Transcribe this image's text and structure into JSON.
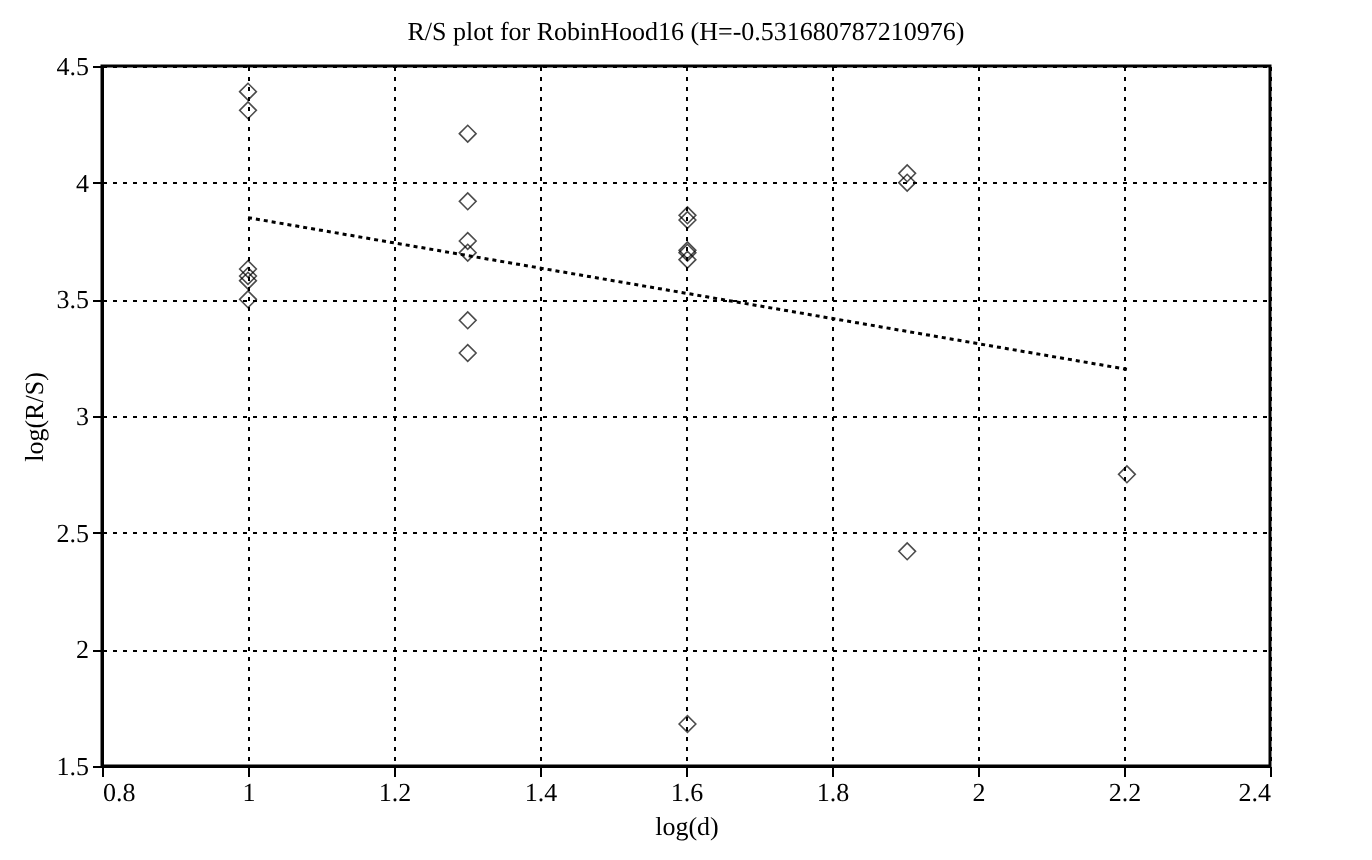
{
  "chart_data": {
    "type": "scatter",
    "title": "R/S plot for RobinHood16 (H=-0.531680787210976)",
    "xlabel": "log(d)",
    "ylabel": "log(R/S)",
    "xlim": [
      0.8,
      2.4
    ],
    "xticks": [
      0.8,
      1,
      1.2,
      1.4,
      1.6,
      1.8,
      2,
      2.2,
      2.4
    ],
    "ylim": [
      1.5,
      4.5
    ],
    "yticks": [
      1.5,
      2,
      2.5,
      3,
      3.5,
      4,
      4.5
    ],
    "grid": true,
    "series": [
      {
        "type": "scatter",
        "marker": "diamond",
        "color": "#000000",
        "x": [
          1,
          1,
          1,
          1,
          1,
          1,
          1.301,
          1.301,
          1.301,
          1.301,
          1.301,
          1.301,
          1.602,
          1.602,
          1.602,
          1.602,
          1.602,
          1.602,
          1.903,
          1.903,
          1.903,
          2.204
        ],
        "values": [
          4.39,
          4.31,
          3.63,
          3.6,
          3.58,
          3.5,
          4.21,
          3.92,
          3.75,
          3.7,
          3.41,
          3.27,
          3.86,
          3.84,
          3.71,
          3.7,
          3.67,
          1.68,
          4.04,
          4.0,
          2.42,
          2.75
        ]
      },
      {
        "type": "line",
        "line_style": "dotted",
        "color": "#000000",
        "x": [
          1,
          2.204
        ],
        "values": [
          3.85,
          3.2
        ]
      }
    ]
  }
}
